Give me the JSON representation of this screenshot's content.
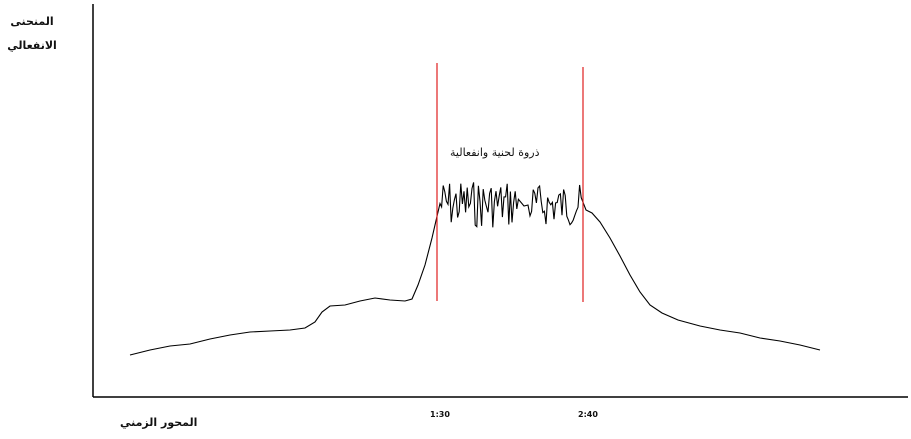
{
  "labels": {
    "y_axis": [
      "المنحنى",
      "الانفعالي"
    ],
    "x_axis": "المحور الزمني",
    "peak": "ذروة لحنية وانفعالية"
  },
  "ticks": [
    "1:30",
    "2:40"
  ],
  "colors": {
    "curve": "#000000",
    "axis": "#000000",
    "marker": "#e02020"
  }
}
